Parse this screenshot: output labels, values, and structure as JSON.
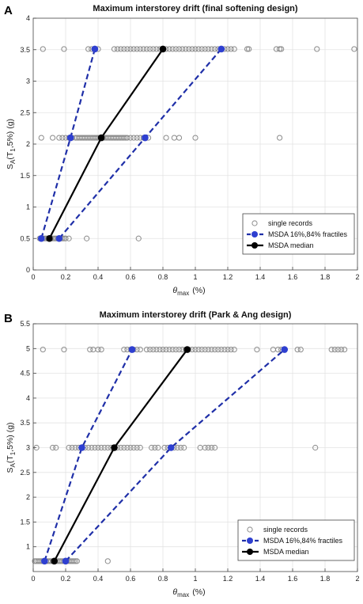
{
  "colors": {
    "records": "#8c8c8c",
    "fractile": "#1f2fa8",
    "fractile_marker": "#2e3fd0",
    "median": "#000000",
    "grid": "#e3e3e3",
    "axis": "#444444"
  },
  "chart_data": [
    {
      "type": "scatter",
      "panel_label": "A",
      "title": "Maximum interstorey drift (final softening design)",
      "xlabel_symbol": "θ",
      "xlabel_sub": "max",
      "xlabel_unit": "(%)",
      "ylabel_main": "S",
      "ylabel_sub": "A",
      "ylabel_mid": "(T",
      "ylabel_sub2": "1",
      "ylabel_end": ",5%) (g)",
      "xlim": [
        0,
        2
      ],
      "ylim": [
        0,
        4
      ],
      "xticks": [
        0,
        0.2,
        0.4,
        0.6,
        0.8,
        1,
        1.2,
        1.4,
        1.6,
        1.8,
        2
      ],
      "xtick_labels": [
        "0",
        "0.2",
        "0.4",
        "0.6",
        "0.8",
        "1",
        "1.2",
        "1.4",
        "1.6",
        "1.8",
        "2"
      ],
      "yticks": [
        0,
        0.5,
        1,
        1.5,
        2,
        2.5,
        3,
        3.5,
        4
      ],
      "ytick_labels": [
        "0",
        "0.5",
        "1",
        "1.5",
        "2",
        "2.5",
        "3",
        "3.5",
        "4"
      ],
      "grid": true,
      "legend": {
        "position": "bottom-right",
        "entries": [
          "single records",
          "MSDA 16%,84% fractiles",
          "MSDA median"
        ]
      },
      "records": [
        {
          "y": 0.5,
          "x": [
            0.04,
            0.05,
            0.06,
            0.07,
            0.08,
            0.09,
            0.1,
            0.11,
            0.12,
            0.13,
            0.14,
            0.15,
            0.16,
            0.17,
            0.18,
            0.19,
            0.2,
            0.22,
            0.33,
            0.65
          ]
        },
        {
          "y": 2.1,
          "x": [
            0.05,
            0.12,
            0.16,
            0.18,
            0.2,
            0.22,
            0.24,
            0.26,
            0.27,
            0.28,
            0.29,
            0.3,
            0.31,
            0.32,
            0.33,
            0.34,
            0.35,
            0.36,
            0.37,
            0.38,
            0.39,
            0.4,
            0.41,
            0.42,
            0.43,
            0.44,
            0.45,
            0.46,
            0.47,
            0.48,
            0.49,
            0.5,
            0.51,
            0.52,
            0.53,
            0.54,
            0.55,
            0.56,
            0.57,
            0.58,
            0.6,
            0.62,
            0.64,
            0.66,
            0.68,
            0.71,
            0.82,
            0.87,
            0.9,
            1.0,
            1.52
          ]
        },
        {
          "y": 3.51,
          "x": [
            0.06,
            0.19,
            0.34,
            0.36,
            0.38,
            0.4,
            0.5,
            0.52,
            0.54,
            0.56,
            0.58,
            0.6,
            0.62,
            0.64,
            0.66,
            0.68,
            0.7,
            0.72,
            0.74,
            0.76,
            0.78,
            0.8,
            0.82,
            0.84,
            0.86,
            0.88,
            0.9,
            0.92,
            0.94,
            0.96,
            0.98,
            1.0,
            1.02,
            1.04,
            1.06,
            1.08,
            1.1,
            1.12,
            1.14,
            1.16,
            1.18,
            1.2,
            1.22,
            1.24,
            1.32,
            1.33,
            1.5,
            1.52,
            1.53,
            1.75,
            1.98
          ]
        }
      ],
      "series": [
        {
          "name": "MSDA 16%,84% fractiles",
          "style": "dashed",
          "x": [
            0.05,
            0.23,
            0.38
          ],
          "y": [
            0.5,
            2.1,
            3.51
          ]
        },
        {
          "name": "MSDA 16%,84% fractiles",
          "style": "dashed",
          "x": [
            0.16,
            0.69,
            1.16
          ],
          "y": [
            0.5,
            2.1,
            3.51
          ]
        },
        {
          "name": "MSDA median",
          "style": "solid",
          "x": [
            0.1,
            0.42,
            0.8
          ],
          "y": [
            0.5,
            2.1,
            3.51
          ]
        }
      ]
    },
    {
      "type": "scatter",
      "panel_label": "B",
      "title": "Maximum interstorey drift (Park & Ang design)",
      "xlabel_symbol": "θ",
      "xlabel_sub": "max",
      "xlabel_unit": "(%)",
      "ylabel_main": "S",
      "ylabel_sub": "A",
      "ylabel_mid": "(T",
      "ylabel_sub2": "1",
      "ylabel_end": ",5%) (g)",
      "xlim": [
        0,
        2
      ],
      "ylim": [
        0.5,
        5.5
      ],
      "xticks": [
        0,
        0.2,
        0.4,
        0.6,
        0.8,
        1,
        1.2,
        1.4,
        1.6,
        1.8,
        2
      ],
      "xtick_labels": [
        "0",
        "0.2",
        "0.4",
        "0.6",
        "0.8",
        "1",
        "1.2",
        "1.4",
        "1.6",
        "1.8",
        "2"
      ],
      "yticks": [
        1,
        1.5,
        2,
        2.5,
        3,
        3.5,
        4,
        4.5,
        5,
        5.5
      ],
      "ytick_labels": [
        "1",
        "1.5",
        "2",
        "2.5",
        "3",
        "3.5",
        "4",
        "4.5",
        "5",
        "5.5"
      ],
      "grid": true,
      "legend": {
        "position": "bottom-right",
        "entries": [
          "single records",
          "MSDA 16%,84% fractiles",
          "MSDA median"
        ]
      },
      "records": [
        {
          "y": 0.71,
          "x": [
            0.01,
            0.02,
            0.03,
            0.04,
            0.05,
            0.06,
            0.07,
            0.08,
            0.09,
            0.1,
            0.11,
            0.12,
            0.13,
            0.14,
            0.15,
            0.16,
            0.17,
            0.18,
            0.19,
            0.2,
            0.21,
            0.22,
            0.23,
            0.24,
            0.25,
            0.26,
            0.27,
            0.46
          ]
        },
        {
          "y": 3.0,
          "x": [
            0.02,
            0.12,
            0.14,
            0.22,
            0.24,
            0.26,
            0.28,
            0.3,
            0.32,
            0.34,
            0.36,
            0.38,
            0.4,
            0.42,
            0.44,
            0.46,
            0.48,
            0.5,
            0.52,
            0.54,
            0.56,
            0.58,
            0.6,
            0.62,
            0.64,
            0.66,
            0.73,
            0.75,
            0.77,
            0.81,
            0.83,
            0.85,
            0.87,
            0.89,
            0.91,
            0.93,
            1.03,
            1.06,
            1.08,
            1.1,
            1.12,
            1.74
          ]
        },
        {
          "y": 4.98,
          "x": [
            0.06,
            0.19,
            0.35,
            0.37,
            0.4,
            0.42,
            0.56,
            0.58,
            0.6,
            0.62,
            0.64,
            0.66,
            0.7,
            0.72,
            0.74,
            0.76,
            0.78,
            0.8,
            0.82,
            0.84,
            0.86,
            0.88,
            0.9,
            0.92,
            0.94,
            0.96,
            0.98,
            1.0,
            1.02,
            1.04,
            1.06,
            1.08,
            1.1,
            1.12,
            1.14,
            1.16,
            1.18,
            1.2,
            1.22,
            1.24,
            1.38,
            1.48,
            1.51,
            1.53,
            1.63,
            1.65,
            1.84,
            1.86,
            1.88,
            1.9,
            1.92
          ]
        }
      ],
      "series": [
        {
          "name": "MSDA 16%,84% fractiles",
          "style": "dashed",
          "x": [
            0.07,
            0.3,
            0.61
          ],
          "y": [
            0.71,
            3.0,
            4.98
          ]
        },
        {
          "name": "MSDA 16%,84% fractiles",
          "style": "dashed",
          "x": [
            0.2,
            0.85,
            1.55
          ],
          "y": [
            0.71,
            3.0,
            4.98
          ]
        },
        {
          "name": "MSDA median",
          "style": "solid",
          "x": [
            0.13,
            0.5,
            0.95
          ],
          "y": [
            0.71,
            3.0,
            4.98
          ]
        }
      ]
    }
  ]
}
